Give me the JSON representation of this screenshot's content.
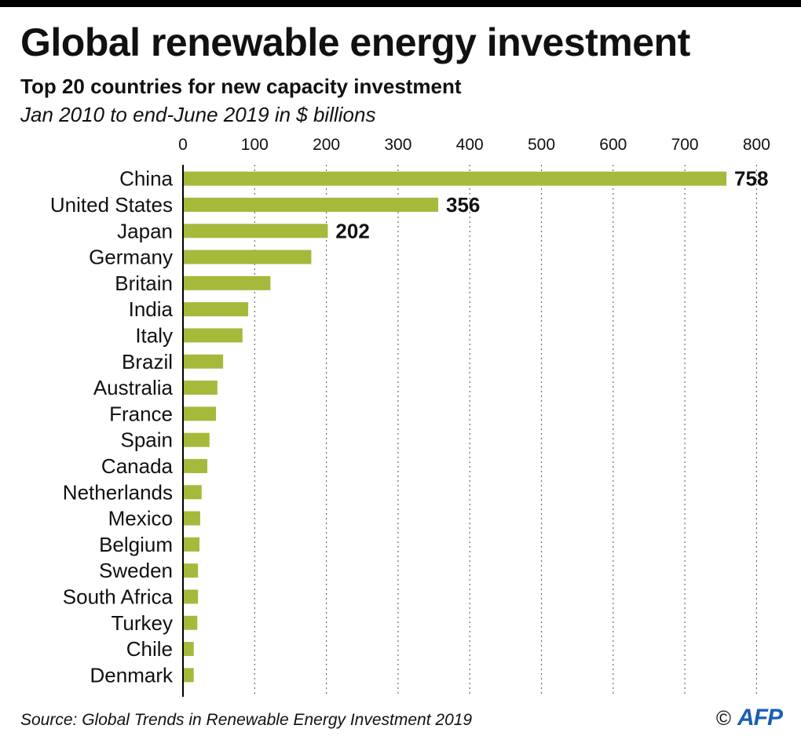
{
  "header": {
    "title": "Global renewable energy investment",
    "subtitle": "Top 20 countries for new capacity investment",
    "subtitle2": "Jan 2010 to end-June 2019 in $ billions"
  },
  "footer": {
    "source": "Source: Global Trends in Renewable Energy Investment 2019",
    "copyright": "©",
    "logo": "AFP"
  },
  "colors": {
    "bar": "#a6b93b",
    "gridline": "#6b6b6b",
    "axis": "#000000",
    "text": "#111111",
    "logo": "#1a5fb4"
  },
  "chart_data": {
    "type": "bar",
    "orientation": "horizontal",
    "title": "Global renewable energy investment",
    "subtitle": "Top 20 countries for new capacity investment",
    "xlim": [
      0,
      800
    ],
    "xticks": [
      0,
      100,
      200,
      300,
      400,
      500,
      600,
      700,
      800
    ],
    "xaxis_position": "top",
    "grid": "vertical dotted",
    "categories": [
      "China",
      "United States",
      "Japan",
      "Germany",
      "Britain",
      "India",
      "Italy",
      "Brazil",
      "Australia",
      "France",
      "Spain",
      "Canada",
      "Netherlands",
      "Mexico",
      "Belgium",
      "Sweden",
      "South Africa",
      "Turkey",
      "Chile",
      "Denmark"
    ],
    "values": [
      758,
      356,
      202,
      179,
      122,
      91,
      83,
      56,
      48,
      46,
      37,
      34,
      26,
      24,
      23,
      21,
      21,
      20,
      15,
      15
    ],
    "data_labels": [
      "758",
      "356",
      "202",
      "",
      "",
      "",
      "",
      "",
      "",
      "",
      "",
      "",
      "",
      "",
      "",
      "",
      "",
      "",
      "",
      ""
    ]
  }
}
